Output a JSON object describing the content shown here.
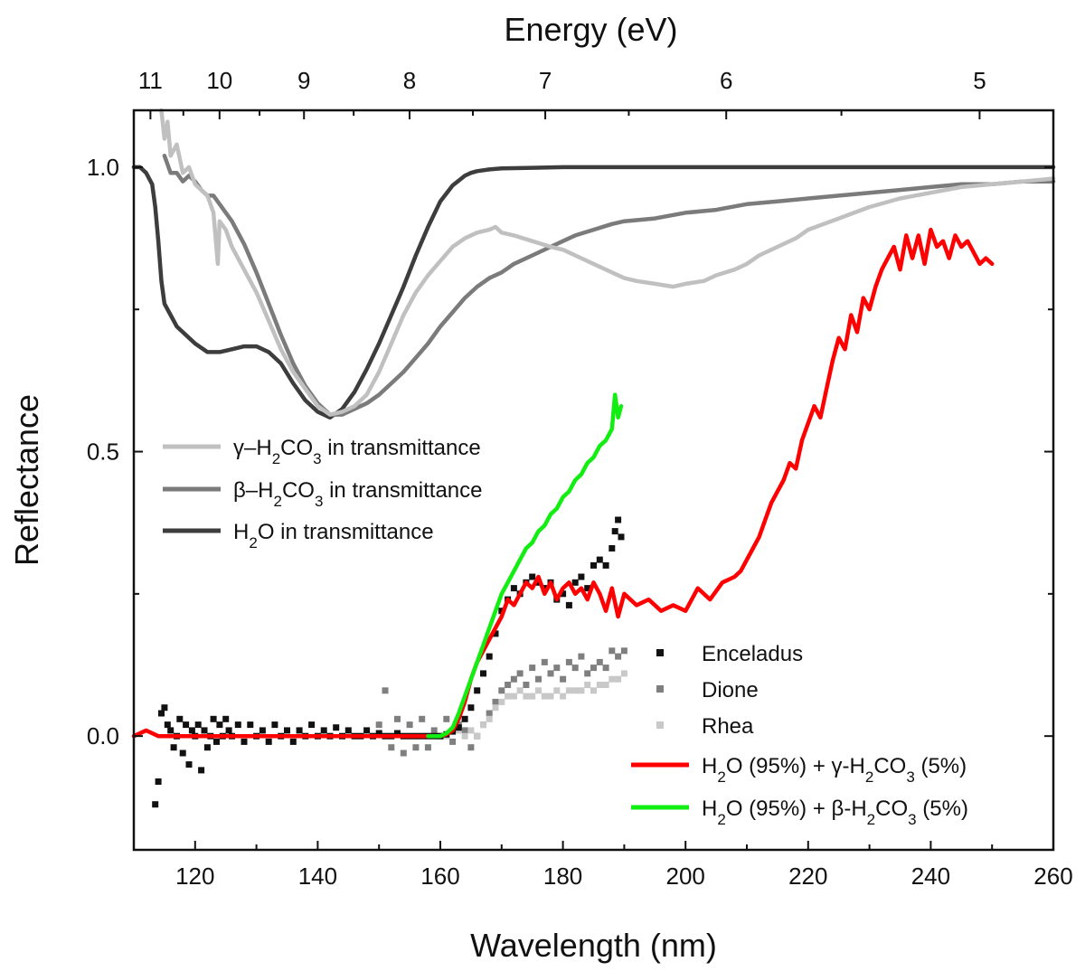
{
  "chart_data": {
    "type": "line",
    "title": "",
    "xlabel": "Wavelength (nm)",
    "ylabel": "Reflectance",
    "x2label": "Energy (eV)",
    "xlim": [
      110,
      260
    ],
    "ylim": [
      -0.2,
      1.1
    ],
    "xticks": [
      120,
      140,
      160,
      180,
      200,
      220,
      240,
      260
    ],
    "xtick_labels": [
      "120",
      "140",
      "160",
      "180",
      "200",
      "220",
      "240",
      "260"
    ],
    "yticks": [
      0.0,
      0.5,
      1.0
    ],
    "ytick_labels": [
      "0.0",
      "0.5",
      "1.0"
    ],
    "energy_ticks": [
      11,
      10,
      9,
      8,
      7,
      6,
      5
    ],
    "energy_tick_labels": [
      "11",
      "10",
      "9",
      "8",
      "7",
      "6",
      "5"
    ],
    "series": [
      {
        "name": "H2O in transmittance",
        "label_parts": [
          [
            "H",
            ""
          ],
          [
            "2",
            "sub"
          ],
          [
            "O in transmittance",
            ""
          ]
        ],
        "color": "#3d3d3d",
        "style": "line",
        "legend_group": "top",
        "x": [
          110,
          111,
          112,
          113,
          113.5,
          114,
          114.5,
          115,
          116,
          117,
          118,
          119,
          120,
          122,
          124,
          126,
          128,
          130,
          132,
          134,
          136,
          138,
          140,
          142,
          144,
          146,
          148,
          150,
          152,
          154,
          156,
          158,
          160,
          162,
          164,
          165,
          166,
          168,
          170,
          175,
          180,
          190,
          200,
          210,
          220,
          230,
          240,
          250,
          260
        ],
        "y": [
          1.0,
          1.0,
          0.99,
          0.97,
          0.93,
          0.87,
          0.8,
          0.76,
          0.74,
          0.72,
          0.71,
          0.7,
          0.69,
          0.675,
          0.675,
          0.68,
          0.685,
          0.685,
          0.675,
          0.655,
          0.62,
          0.59,
          0.57,
          0.56,
          0.575,
          0.605,
          0.645,
          0.69,
          0.74,
          0.79,
          0.845,
          0.895,
          0.94,
          0.968,
          0.985,
          0.99,
          0.993,
          0.996,
          0.998,
          0.999,
          1.0,
          1.0,
          1.0,
          1.0,
          1.0,
          1.0,
          1.0,
          1.0,
          1.0
        ]
      },
      {
        "name": "beta-H2CO3 in transmittance",
        "label_parts": [
          [
            "β–H",
            ""
          ],
          [
            "2",
            "sub"
          ],
          [
            "CO",
            ""
          ],
          [
            "3",
            "sub"
          ],
          [
            " in transmittance",
            ""
          ]
        ],
        "color": "#7b7b7b",
        "style": "line",
        "legend_group": "top",
        "x": [
          115,
          116,
          117,
          118,
          119,
          120,
          121,
          122,
          123,
          124,
          126,
          128,
          130,
          132,
          134,
          136,
          138,
          140,
          142,
          144,
          146,
          148,
          150,
          152,
          154,
          156,
          158,
          160,
          162,
          164,
          166,
          168,
          170,
          172,
          175,
          178,
          180,
          182,
          185,
          188,
          190,
          195,
          200,
          205,
          210,
          215,
          220,
          225,
          230,
          235,
          240,
          245,
          250,
          255,
          260
        ],
        "y": [
          1.02,
          0.99,
          0.99,
          0.975,
          0.985,
          0.975,
          0.96,
          0.95,
          0.95,
          0.935,
          0.905,
          0.865,
          0.815,
          0.76,
          0.705,
          0.655,
          0.615,
          0.585,
          0.565,
          0.565,
          0.575,
          0.585,
          0.6,
          0.62,
          0.64,
          0.665,
          0.69,
          0.72,
          0.745,
          0.77,
          0.79,
          0.805,
          0.815,
          0.83,
          0.845,
          0.86,
          0.87,
          0.88,
          0.89,
          0.9,
          0.905,
          0.91,
          0.92,
          0.925,
          0.935,
          0.94,
          0.945,
          0.95,
          0.955,
          0.96,
          0.965,
          0.97,
          0.97,
          0.975,
          0.975
        ]
      },
      {
        "name": "gamma-H2CO3 in transmittance",
        "label_parts": [
          [
            "γ–H",
            ""
          ],
          [
            "2",
            "sub"
          ],
          [
            "CO",
            ""
          ],
          [
            "3",
            "sub"
          ],
          [
            " in transmittance",
            ""
          ]
        ],
        "color": "#c0c0c0",
        "style": "line",
        "legend_group": "top",
        "x": [
          114.5,
          115,
          115.5,
          116,
          117,
          118,
          119,
          120,
          121,
          122,
          123,
          123.7,
          124,
          125,
          126,
          128,
          130,
          132,
          134,
          136,
          138,
          140,
          142,
          144,
          146,
          148,
          150,
          152,
          154,
          156,
          158,
          160,
          162,
          164,
          166,
          168,
          169,
          170,
          172,
          175,
          178,
          180,
          182,
          185,
          188,
          190,
          192,
          195,
          198,
          200,
          203,
          205,
          208,
          210,
          212,
          215,
          218,
          220,
          225,
          230,
          235,
          240,
          245,
          250,
          255,
          260
        ],
        "y": [
          1.1,
          1.05,
          1.08,
          1.02,
          1.04,
          0.99,
          1.0,
          0.97,
          0.96,
          0.95,
          0.92,
          0.83,
          0.905,
          0.89,
          0.86,
          0.82,
          0.78,
          0.73,
          0.68,
          0.64,
          0.61,
          0.58,
          0.565,
          0.57,
          0.58,
          0.6,
          0.64,
          0.69,
          0.74,
          0.78,
          0.81,
          0.835,
          0.86,
          0.875,
          0.885,
          0.89,
          0.895,
          0.885,
          0.88,
          0.87,
          0.86,
          0.855,
          0.845,
          0.83,
          0.815,
          0.805,
          0.8,
          0.795,
          0.79,
          0.795,
          0.8,
          0.81,
          0.82,
          0.83,
          0.845,
          0.86,
          0.875,
          0.89,
          0.91,
          0.93,
          0.945,
          0.955,
          0.965,
          0.97,
          0.975,
          0.98
        ]
      },
      {
        "name": "Enceladus",
        "label_parts": [
          [
            "Enceladus",
            ""
          ]
        ],
        "color": "#111111",
        "style": "dots",
        "legend_group": "bottom",
        "x": [
          113.5,
          114,
          114.5,
          115,
          115.5,
          116,
          116.5,
          117,
          117.5,
          118,
          118.5,
          119,
          119.5,
          120,
          120.5,
          121,
          121.5,
          122,
          122.5,
          123,
          123.5,
          124,
          124.5,
          125,
          125.5,
          126,
          127,
          128,
          129,
          130,
          131,
          132,
          133,
          134,
          135,
          136,
          137,
          138,
          139,
          140,
          141,
          142,
          143,
          144,
          145,
          146,
          147,
          148,
          149,
          150,
          151,
          152,
          153,
          154,
          155,
          156,
          157,
          158,
          159,
          160,
          161,
          162,
          163,
          164,
          165,
          166,
          167,
          168,
          169,
          170,
          171,
          172,
          173,
          174,
          175,
          176,
          177,
          178,
          179,
          180,
          181,
          182,
          183,
          184,
          185,
          186,
          187,
          188,
          188.5,
          189,
          189.5
        ],
        "y": [
          -0.12,
          -0.08,
          0.04,
          0.05,
          0.02,
          0.01,
          -0.02,
          0.0,
          0.03,
          -0.03,
          0.02,
          -0.05,
          0.01,
          0.0,
          0.02,
          -0.06,
          0.01,
          -0.02,
          0.0,
          0.03,
          -0.01,
          0.02,
          0.0,
          0.03,
          0.01,
          0.0,
          0.02,
          -0.01,
          0.02,
          0.0,
          0.01,
          -0.01,
          0.02,
          0.0,
          0.01,
          -0.01,
          0.01,
          0.0,
          0.02,
          0.0,
          0.01,
          0.0,
          0.015,
          0.0,
          0.01,
          0.0,
          0.0,
          0.01,
          0.0,
          0.005,
          0.0,
          0.0,
          0.005,
          0.0,
          0.0,
          0.0,
          0.0,
          0.0,
          0.0,
          0.0,
          0.003,
          0.008,
          0.015,
          0.03,
          0.05,
          0.08,
          0.11,
          0.14,
          0.18,
          0.22,
          0.24,
          0.26,
          0.25,
          0.27,
          0.28,
          0.27,
          0.26,
          0.27,
          0.24,
          0.25,
          0.23,
          0.27,
          0.28,
          0.26,
          0.3,
          0.31,
          0.3,
          0.33,
          0.36,
          0.38,
          0.35
        ]
      },
      {
        "name": "Dione",
        "label_parts": [
          [
            "Dione",
            ""
          ]
        ],
        "color": "#7f7f7f",
        "style": "dots",
        "legend_group": "bottom",
        "x": [
          150,
          151,
          152,
          153,
          154,
          155,
          156,
          157,
          158,
          159,
          160,
          161,
          162,
          163,
          164,
          165,
          166,
          167,
          168,
          169,
          170,
          171,
          172,
          173,
          174,
          175,
          176,
          177,
          178,
          179,
          180,
          181,
          182,
          183,
          184,
          185,
          186,
          187,
          188,
          189,
          190
        ],
        "y": [
          0.02,
          0.08,
          -0.02,
          0.03,
          -0.03,
          0.02,
          -0.02,
          0.03,
          -0.02,
          0.01,
          0.0,
          0.03,
          -0.01,
          0.02,
          0.01,
          -0.02,
          0.0,
          0.02,
          0.04,
          0.06,
          0.08,
          0.09,
          0.1,
          0.11,
          0.09,
          0.12,
          0.1,
          0.13,
          0.11,
          0.12,
          0.1,
          0.13,
          0.12,
          0.14,
          0.11,
          0.12,
          0.13,
          0.12,
          0.15,
          0.14,
          0.15
        ]
      },
      {
        "name": "Rhea",
        "label_parts": [
          [
            "Rhea",
            ""
          ]
        ],
        "color": "#c8c8c8",
        "style": "dots",
        "legend_group": "bottom",
        "x": [
          160,
          161,
          162,
          163,
          164,
          165,
          166,
          167,
          168,
          169,
          170,
          171,
          172,
          173,
          174,
          175,
          176,
          177,
          178,
          179,
          180,
          181,
          182,
          183,
          184,
          185,
          186,
          187,
          188,
          189,
          190
        ],
        "y": [
          0.0,
          0.0,
          0.01,
          0.01,
          0.0,
          0.01,
          0.0,
          0.02,
          0.03,
          0.05,
          0.06,
          0.07,
          0.07,
          0.08,
          0.07,
          0.07,
          0.08,
          0.07,
          0.07,
          0.08,
          0.07,
          0.08,
          0.08,
          0.08,
          0.09,
          0.08,
          0.09,
          0.09,
          0.1,
          0.1,
          0.11
        ]
      },
      {
        "name": "H2O (95%) + gamma-H2CO3 (5%)",
        "label_parts": [
          [
            "H",
            ""
          ],
          [
            "2",
            "sub"
          ],
          [
            "O (95%) + γ-H",
            ""
          ],
          [
            "2",
            "sub"
          ],
          [
            "CO",
            ""
          ],
          [
            "3",
            "sub"
          ],
          [
            " (5%)",
            ""
          ]
        ],
        "color": "#ff0000",
        "style": "line",
        "legend_group": "bottom",
        "x": [
          110,
          112,
          113,
          114,
          116,
          118,
          120,
          125,
          130,
          140,
          150,
          155,
          158,
          160,
          161,
          162,
          163,
          164,
          165,
          166,
          167,
          168,
          169,
          170,
          171,
          172,
          173,
          174,
          175,
          176,
          177,
          178,
          179,
          180,
          181,
          182,
          183,
          184,
          185,
          186,
          187,
          188,
          189,
          190,
          192,
          194,
          196,
          198,
          200,
          202,
          204,
          206,
          208,
          209,
          210,
          211,
          212,
          213,
          214,
          215,
          216,
          217,
          218,
          219,
          220,
          221,
          222,
          223,
          224,
          225,
          226,
          227,
          228,
          229,
          230,
          231,
          232,
          233,
          234,
          235,
          236,
          237,
          238,
          239,
          240,
          241,
          242,
          243,
          244,
          245,
          246,
          247,
          248,
          249,
          250
        ],
        "y": [
          0.0,
          0.01,
          0.005,
          0.0,
          0.0,
          0.0,
          0.0,
          0.0,
          0.0,
          0.0,
          0.0,
          0.0,
          0.0,
          0.0,
          0.003,
          0.01,
          0.03,
          0.06,
          0.1,
          0.13,
          0.15,
          0.17,
          0.19,
          0.21,
          0.24,
          0.23,
          0.25,
          0.27,
          0.26,
          0.28,
          0.25,
          0.27,
          0.24,
          0.26,
          0.27,
          0.25,
          0.26,
          0.24,
          0.27,
          0.25,
          0.22,
          0.26,
          0.21,
          0.25,
          0.23,
          0.24,
          0.22,
          0.23,
          0.22,
          0.26,
          0.24,
          0.27,
          0.28,
          0.29,
          0.31,
          0.33,
          0.35,
          0.38,
          0.41,
          0.43,
          0.45,
          0.48,
          0.47,
          0.52,
          0.55,
          0.58,
          0.56,
          0.61,
          0.66,
          0.7,
          0.68,
          0.74,
          0.71,
          0.77,
          0.75,
          0.79,
          0.82,
          0.84,
          0.86,
          0.82,
          0.88,
          0.84,
          0.88,
          0.83,
          0.89,
          0.86,
          0.87,
          0.84,
          0.88,
          0.86,
          0.87,
          0.85,
          0.83,
          0.84,
          0.83
        ]
      },
      {
        "name": "H2O (95%) + beta-H2CO3 (5%)",
        "label_parts": [
          [
            "H",
            ""
          ],
          [
            "2",
            "sub"
          ],
          [
            "O (95%) + β-H",
            ""
          ],
          [
            "2",
            "sub"
          ],
          [
            "CO",
            ""
          ],
          [
            "3",
            "sub"
          ],
          [
            " (5%)",
            ""
          ]
        ],
        "color": "#12ee12",
        "style": "line",
        "legend_group": "bottom",
        "x": [
          158,
          160,
          161,
          162,
          163,
          164,
          165,
          166,
          167,
          168,
          169,
          170,
          171,
          172,
          173,
          174,
          175,
          176,
          177,
          178,
          179,
          180,
          181,
          182,
          183,
          184,
          185,
          186,
          187,
          188,
          188.5,
          189,
          189.5
        ],
        "y": [
          0.0,
          0.0,
          0.005,
          0.015,
          0.04,
          0.07,
          0.1,
          0.13,
          0.16,
          0.19,
          0.22,
          0.25,
          0.27,
          0.29,
          0.31,
          0.33,
          0.34,
          0.36,
          0.37,
          0.39,
          0.4,
          0.42,
          0.43,
          0.45,
          0.46,
          0.48,
          0.49,
          0.51,
          0.52,
          0.54,
          0.6,
          0.56,
          0.58
        ]
      }
    ]
  }
}
